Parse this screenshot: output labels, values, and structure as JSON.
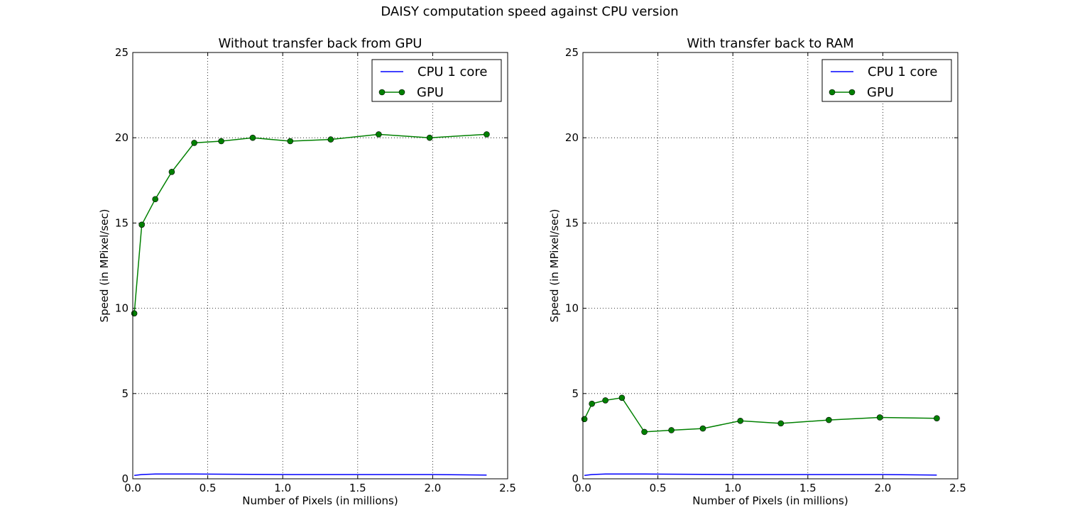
{
  "figure": {
    "suptitle": "DAISY computation speed against CPU version"
  },
  "colors": {
    "cpu": "#0000ff",
    "gpu": "#008000",
    "grid": "#000000",
    "background": "#ffffff"
  },
  "chart_data": [
    {
      "type": "line",
      "title": "Without transfer back from GPU",
      "xlabel": "Number of Pixels (in millions)",
      "ylabel": "Speed (in MPixel/sec)",
      "xlim": [
        0,
        2.5
      ],
      "ylim": [
        0,
        25
      ],
      "xticks": [
        "0.0",
        "0.5",
        "1.0",
        "1.5",
        "2.0",
        "2.5"
      ],
      "yticks": [
        "0",
        "5",
        "10",
        "15",
        "20",
        "25"
      ],
      "grid": true,
      "legend_position": "top-right",
      "series": [
        {
          "name": "CPU 1 core",
          "marker": "none",
          "x": [
            0.01,
            0.06,
            0.15,
            0.26,
            0.41,
            0.59,
            0.8,
            1.05,
            1.32,
            1.64,
            1.98,
            2.36
          ],
          "values": [
            0.2,
            0.25,
            0.28,
            0.28,
            0.28,
            0.27,
            0.26,
            0.25,
            0.25,
            0.25,
            0.25,
            0.22
          ]
        },
        {
          "name": "GPU",
          "marker": "circle",
          "x": [
            0.01,
            0.06,
            0.15,
            0.26,
            0.41,
            0.59,
            0.8,
            1.05,
            1.32,
            1.64,
            1.98,
            2.36
          ],
          "values": [
            9.7,
            14.9,
            16.4,
            18.0,
            19.7,
            19.8,
            20.0,
            19.8,
            19.9,
            20.2,
            20.0,
            20.2
          ]
        }
      ]
    },
    {
      "type": "line",
      "title": "With transfer back to RAM",
      "xlabel": "Number of Pixels (in millions)",
      "ylabel": "Speed (in MPixel/sec)",
      "xlim": [
        0,
        2.5
      ],
      "ylim": [
        0,
        25
      ],
      "xticks": [
        "0.0",
        "0.5",
        "1.0",
        "1.5",
        "2.0",
        "2.5"
      ],
      "yticks": [
        "0",
        "5",
        "10",
        "15",
        "20",
        "25"
      ],
      "grid": true,
      "legend_position": "top-right",
      "series": [
        {
          "name": "CPU 1 core",
          "marker": "none",
          "x": [
            0.01,
            0.06,
            0.15,
            0.26,
            0.41,
            0.59,
            0.8,
            1.05,
            1.32,
            1.64,
            1.98,
            2.36
          ],
          "values": [
            0.2,
            0.25,
            0.28,
            0.28,
            0.28,
            0.27,
            0.26,
            0.25,
            0.25,
            0.25,
            0.25,
            0.22
          ]
        },
        {
          "name": "GPU",
          "marker": "circle",
          "x": [
            0.01,
            0.06,
            0.15,
            0.26,
            0.41,
            0.59,
            0.8,
            1.05,
            1.32,
            1.64,
            1.98,
            2.36
          ],
          "values": [
            3.5,
            4.4,
            4.6,
            4.75,
            2.75,
            2.85,
            2.95,
            3.4,
            3.25,
            3.45,
            3.6,
            3.55
          ]
        }
      ]
    }
  ]
}
